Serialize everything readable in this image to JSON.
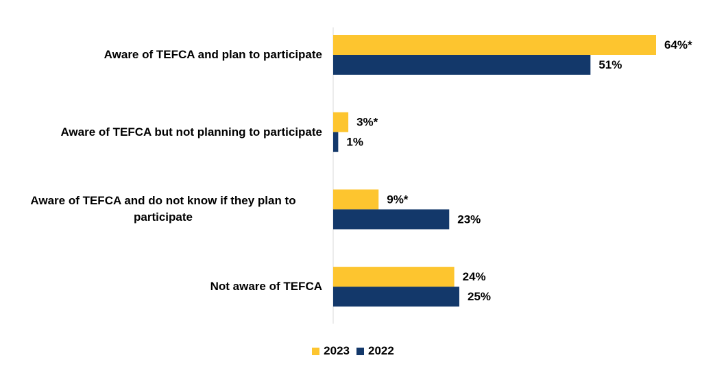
{
  "chart_data": {
    "type": "bar",
    "orientation": "horizontal",
    "categories": [
      "Aware of TEFCA and plan to participate",
      "Aware of TEFCA but not planning to participate",
      "Aware of TEFCA and do not know if they plan to participate",
      "Not aware of TEFCA"
    ],
    "series": [
      {
        "name": "2023",
        "color": "#fdc52f",
        "values": [
          64,
          3,
          9,
          24
        ],
        "value_labels": [
          "64%*",
          "3%*",
          "9%*",
          "24%"
        ]
      },
      {
        "name": "2022",
        "color": "#13386a",
        "values": [
          51,
          1,
          23,
          25
        ],
        "value_labels": [
          "51%",
          "1%",
          "23%",
          "25%"
        ]
      }
    ],
    "legend": "bottom"
  }
}
